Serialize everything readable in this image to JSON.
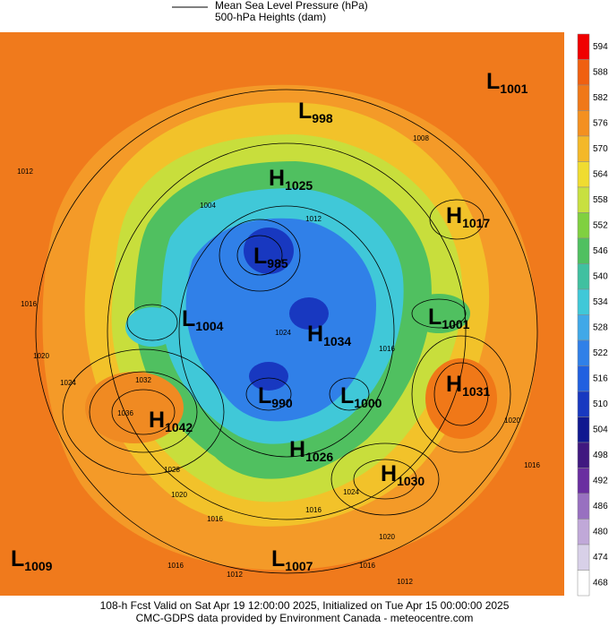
{
  "legend": {
    "line1": "Mean Sea Level Pressure (hPa)",
    "line2": "500-hPa Heights (dam)"
  },
  "colorbar": {
    "labels": [
      594,
      588,
      582,
      576,
      570,
      564,
      558,
      552,
      546,
      540,
      534,
      528,
      522,
      516,
      510,
      504,
      498,
      492,
      486,
      480,
      474,
      468
    ],
    "colors": [
      "#f00000",
      "#f06010",
      "#f07818",
      "#f49020",
      "#f4b828",
      "#f0dc30",
      "#c8e040",
      "#80d040",
      "#50c060",
      "#40c0a0",
      "#40c8d8",
      "#40a8e8",
      "#3080e8",
      "#2060e0",
      "#1838c0",
      "#101890",
      "#401880",
      "#6a2ea0",
      "#9870c0",
      "#c0a8d8",
      "#d8d0e8",
      "#ffffff"
    ]
  },
  "centers": [
    {
      "kind": "L",
      "value": "1001"
    },
    {
      "kind": "L",
      "value": "998"
    },
    {
      "kind": "H",
      "value": "1025"
    },
    {
      "kind": "H",
      "value": "1017"
    },
    {
      "kind": "L",
      "value": "985"
    },
    {
      "kind": "L",
      "value": "1004"
    },
    {
      "kind": "H",
      "value": "1034"
    },
    {
      "kind": "L",
      "value": "1001"
    },
    {
      "kind": "H",
      "value": "1031"
    },
    {
      "kind": "L",
      "value": "990"
    },
    {
      "kind": "L",
      "value": "1000"
    },
    {
      "kind": "H",
      "value": "1042"
    },
    {
      "kind": "H",
      "value": "1026"
    },
    {
      "kind": "H",
      "value": "1030"
    },
    {
      "kind": "L",
      "value": "1009"
    },
    {
      "kind": "L",
      "value": "1007"
    }
  ],
  "contour_labels": [
    "1008",
    "1012",
    "1012",
    "1004",
    "1016",
    "1020",
    "1024",
    "1032",
    "1036",
    "1028",
    "1024",
    "1016",
    "1020",
    "1016",
    "1016",
    "1012",
    "1016",
    "1020",
    "1024",
    "1016",
    "1020",
    "1016",
    "1012"
  ],
  "footer": {
    "line1": "108-h Fcst Valid on Sat Apr 19 12:00:00 2025, Initialized on Tue Apr 15 00:00:00 2025",
    "line2": "CMC-GDPS data provided by Environment Canada - meteocentre.com"
  }
}
